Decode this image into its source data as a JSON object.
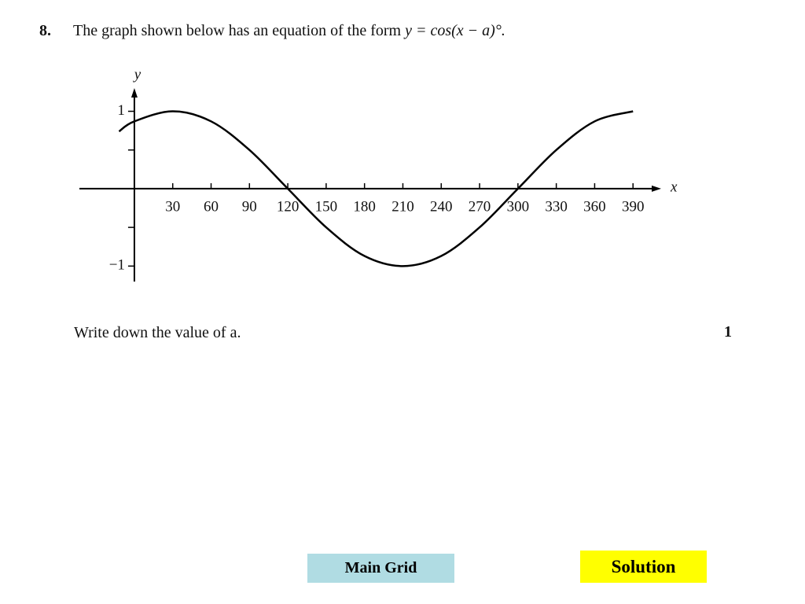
{
  "question": {
    "number": "8.",
    "text": "The graph shown below has an equation of the form",
    "equation": "y = cos(x − a)°.",
    "prompt": "Write down the value of a.",
    "marks": "1"
  },
  "chart_data": {
    "type": "line",
    "x_label": "x",
    "y_label": "y",
    "x": [
      -12,
      0,
      30,
      60,
      90,
      120,
      150,
      180,
      210,
      240,
      270,
      300,
      330,
      360,
      390
    ],
    "values": [
      0.74,
      0.87,
      1,
      0.87,
      0.5,
      0,
      -0.5,
      -0.87,
      -1,
      -0.87,
      -0.5,
      0,
      0.5,
      0.87,
      1
    ],
    "color": "#000000",
    "xlim": [
      -43,
      412
    ],
    "ylim": [
      -1.2,
      1.3
    ],
    "xticks": [
      30,
      60,
      90,
      120,
      150,
      180,
      210,
      240,
      270,
      300,
      330,
      360,
      390
    ],
    "yticks": [
      {
        "value": -1,
        "label": "−1"
      },
      {
        "value": -0.5,
        "label": null
      },
      {
        "value": 0.5,
        "label": null
      },
      1
    ]
  },
  "buttons": [
    "Main Grid",
    "Solution"
  ]
}
